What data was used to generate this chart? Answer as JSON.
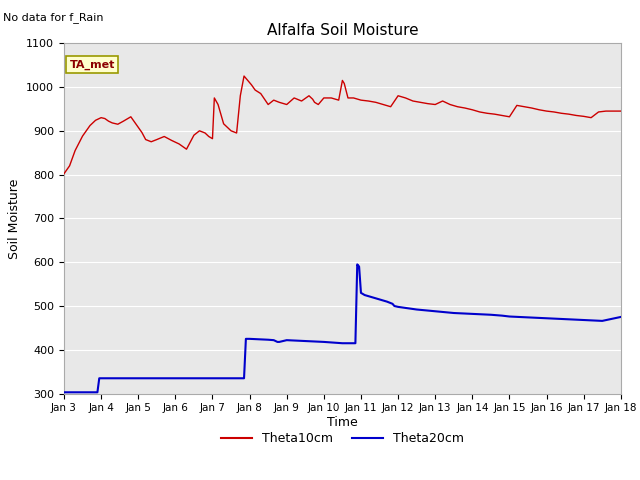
{
  "title": "Alfalfa Soil Moisture",
  "subtitle": "No data for f_Rain",
  "ylabel": "Soil Moisture",
  "xlabel": "Time",
  "ylim": [
    300,
    1100
  ],
  "background_color": "#e8e8e8",
  "legend_label1": "Theta10cm",
  "legend_label2": "Theta20cm",
  "legend_color1": "#cc0000",
  "legend_color2": "#0000cc",
  "ta_met_label": "TA_met",
  "ta_met_box_color": "#ffffcc",
  "ta_met_border_color": "#999900",
  "xtick_labels": [
    "Jan 3",
    "Jan 4",
    "Jan 5",
    "Jan 6",
    "Jan 7",
    "Jan 8",
    "Jan 9",
    "Jan 10",
    "Jan 11",
    "Jan 12",
    "Jan 13",
    "Jan 14",
    "Jan 15",
    "Jan 16",
    "Jan 17",
    "Jan 18"
  ],
  "ytick_values": [
    300,
    400,
    500,
    600,
    700,
    800,
    900,
    1000,
    1100
  ],
  "red_x": [
    0.0,
    0.15,
    0.3,
    0.5,
    0.7,
    0.85,
    1.0,
    1.1,
    1.2,
    1.3,
    1.45,
    1.6,
    1.8,
    2.0,
    2.1,
    2.2,
    2.35,
    2.5,
    2.7,
    2.9,
    3.1,
    3.3,
    3.5,
    3.65,
    3.8,
    3.9,
    4.0,
    4.05,
    4.15,
    4.3,
    4.5,
    4.65,
    4.75,
    4.85,
    4.95,
    5.05,
    5.15,
    5.3,
    5.5,
    5.65,
    5.8,
    6.0,
    6.2,
    6.4,
    6.6,
    6.7,
    6.75,
    6.85,
    7.0,
    7.2,
    7.4,
    7.5,
    7.55,
    7.65,
    7.8,
    8.0,
    8.2,
    8.4,
    8.6,
    8.8,
    9.0,
    9.2,
    9.4,
    9.6,
    9.8,
    10.0,
    10.2,
    10.4,
    10.6,
    10.8,
    11.0,
    11.2,
    11.4,
    11.6,
    11.8,
    12.0,
    12.2,
    12.4,
    12.6,
    12.8,
    13.0,
    13.2,
    13.4,
    13.6,
    13.8,
    14.0,
    14.2,
    14.4,
    14.6,
    14.8,
    15.0
  ],
  "red_y": [
    802,
    820,
    855,
    888,
    912,
    924,
    930,
    928,
    922,
    918,
    915,
    922,
    932,
    908,
    896,
    880,
    875,
    880,
    887,
    878,
    870,
    858,
    890,
    900,
    895,
    887,
    882,
    975,
    960,
    916,
    900,
    895,
    980,
    1025,
    1015,
    1005,
    993,
    985,
    960,
    970,
    965,
    960,
    975,
    968,
    980,
    972,
    965,
    960,
    975,
    975,
    970,
    1015,
    1008,
    975,
    975,
    970,
    968,
    965,
    960,
    955,
    980,
    975,
    968,
    965,
    962,
    960,
    968,
    960,
    955,
    952,
    948,
    943,
    940,
    938,
    935,
    932,
    958,
    955,
    952,
    948,
    945,
    943,
    940,
    938,
    935,
    933,
    930,
    943,
    945,
    945,
    945
  ],
  "blue_x": [
    0.0,
    0.05,
    0.9,
    0.95,
    1.0,
    1.5,
    2.0,
    2.5,
    3.0,
    3.5,
    4.0,
    4.5,
    4.85,
    4.9,
    5.0,
    5.5,
    5.65,
    5.7,
    5.75,
    5.8,
    6.0,
    6.5,
    7.0,
    7.5,
    7.85,
    7.9,
    7.95,
    8.0,
    8.1,
    8.3,
    8.5,
    8.7,
    8.85,
    8.9,
    9.0,
    9.5,
    10.0,
    10.5,
    11.0,
    11.5,
    11.8,
    12.0,
    12.5,
    13.0,
    13.5,
    14.0,
    14.5,
    15.0
  ],
  "blue_y": [
    303,
    303,
    303,
    335,
    335,
    335,
    335,
    335,
    335,
    335,
    335,
    335,
    335,
    425,
    425,
    423,
    422,
    420,
    418,
    418,
    422,
    420,
    418,
    415,
    415,
    595,
    590,
    530,
    525,
    520,
    515,
    510,
    505,
    500,
    498,
    492,
    488,
    484,
    482,
    480,
    478,
    476,
    474,
    472,
    470,
    468,
    466,
    475
  ]
}
